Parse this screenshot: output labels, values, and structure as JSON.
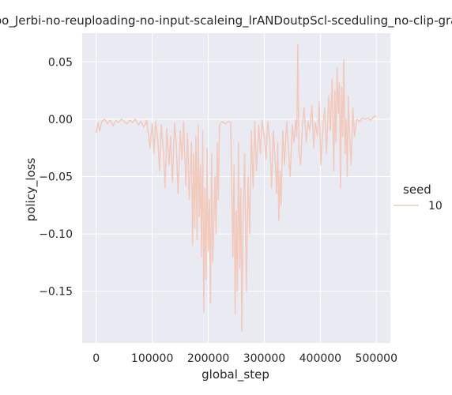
{
  "chart_data": {
    "type": "line",
    "title": "po_Jerbi-no-reuploading-no-input-scaleing_lrANDoutpScl-sceduling_no-clip-gra",
    "xlabel": "global_step",
    "ylabel": "policy_loss",
    "xlim": [
      -25000,
      525000
    ],
    "ylim": [
      -0.195,
      0.075
    ],
    "xticks": [
      0,
      100000,
      200000,
      300000,
      400000,
      500000
    ],
    "xtick_labels": [
      "0",
      "100000",
      "200000",
      "300000",
      "400000",
      "500000"
    ],
    "yticks": [
      -0.15,
      -0.1,
      -0.05,
      0.0,
      0.05
    ],
    "ytick_labels": [
      "−0.15",
      "−0.10",
      "−0.05",
      "0.00",
      "0.05"
    ],
    "grid": true,
    "background": "#eaeaf2",
    "legend": {
      "title": "seed",
      "position": "right",
      "entries": [
        "10"
      ]
    },
    "series": [
      {
        "name": "10",
        "color": "#f2c9bd",
        "x": [
          0,
          3000,
          6000,
          10000,
          15000,
          20000,
          25000,
          30000,
          35000,
          40000,
          45000,
          50000,
          55000,
          60000,
          65000,
          70000,
          75000,
          80000,
          85000,
          90000,
          93000,
          96000,
          100000,
          103000,
          106000,
          110000,
          113000,
          116000,
          120000,
          123000,
          126000,
          130000,
          133000,
          136000,
          140000,
          143000,
          146000,
          150000,
          153000,
          156000,
          160000,
          163000,
          166000,
          170000,
          172000,
          174000,
          176000,
          178000,
          180000,
          182000,
          184000,
          186000,
          188000,
          190000,
          192000,
          194000,
          196000,
          198000,
          200000,
          202000,
          204000,
          206000,
          208000,
          210000,
          212000,
          214000,
          216000,
          218000,
          220000,
          225000,
          230000,
          235000,
          240000,
          242000,
          244000,
          246000,
          248000,
          250000,
          252000,
          254000,
          256000,
          258000,
          260000,
          262000,
          265000,
          268000,
          271000,
          274000,
          277000,
          280000,
          283000,
          286000,
          290000,
          293000,
          296000,
          300000,
          303000,
          306000,
          310000,
          313000,
          316000,
          320000,
          322000,
          324000,
          326000,
          328000,
          330000,
          333000,
          336000,
          340000,
          343000,
          346000,
          350000,
          353000,
          356000,
          358000,
          360000,
          362000,
          365000,
          368000,
          371000,
          375000,
          378000,
          381000,
          385000,
          388000,
          391000,
          395000,
          398000,
          401000,
          405000,
          408000,
          411000,
          415000,
          418000,
          421000,
          424000,
          426000,
          428000,
          430000,
          432000,
          434000,
          436000,
          438000,
          440000,
          442000,
          444000,
          446000,
          448000,
          450000,
          452000,
          455000,
          458000,
          461000,
          465000,
          470000,
          475000,
          480000,
          485000,
          490000,
          495000,
          500000
        ],
        "y": [
          -0.012,
          -0.003,
          -0.01,
          -0.002,
          0.0,
          -0.004,
          -0.001,
          -0.006,
          -0.001,
          -0.003,
          0.0,
          -0.002,
          -0.004,
          -0.001,
          -0.003,
          0.0,
          -0.005,
          -0.002,
          -0.007,
          -0.001,
          -0.012,
          -0.025,
          -0.004,
          -0.03,
          -0.002,
          -0.018,
          -0.045,
          -0.005,
          -0.028,
          -0.06,
          -0.008,
          -0.04,
          -0.015,
          -0.055,
          -0.003,
          -0.022,
          -0.065,
          -0.01,
          -0.035,
          -0.002,
          -0.058,
          -0.012,
          -0.07,
          -0.02,
          -0.11,
          -0.03,
          -0.095,
          -0.015,
          -0.105,
          -0.005,
          -0.085,
          -0.04,
          -0.12,
          -0.01,
          -0.168,
          -0.06,
          -0.14,
          -0.025,
          -0.115,
          -0.07,
          -0.16,
          -0.03,
          -0.125,
          -0.09,
          -0.05,
          -0.1,
          -0.02,
          -0.07,
          -0.005,
          -0.002,
          -0.004,
          -0.002,
          -0.003,
          -0.06,
          -0.12,
          -0.04,
          -0.17,
          -0.08,
          -0.15,
          -0.02,
          -0.13,
          -0.06,
          -0.185,
          -0.09,
          -0.03,
          -0.15,
          -0.05,
          -0.1,
          -0.01,
          -0.06,
          -0.002,
          -0.045,
          -0.005,
          -0.03,
          -0.001,
          -0.015,
          -0.035,
          -0.002,
          -0.02,
          -0.06,
          -0.01,
          -0.04,
          -0.065,
          -0.02,
          -0.088,
          -0.045,
          -0.075,
          -0.01,
          -0.04,
          -0.002,
          -0.025,
          -0.05,
          -0.005,
          -0.02,
          -0.001,
          -0.015,
          0.065,
          -0.03,
          -0.04,
          -0.005,
          0.01,
          -0.02,
          -0.002,
          -0.01,
          0.012,
          -0.025,
          -0.003,
          -0.015,
          0.015,
          -0.04,
          -0.005,
          0.01,
          -0.03,
          0.02,
          -0.01,
          0.035,
          -0.045,
          0.025,
          -0.02,
          0.045,
          0.005,
          0.032,
          -0.06,
          0.028,
          -0.015,
          0.052,
          -0.03,
          0.0,
          -0.05,
          0.02,
          -0.012,
          -0.04,
          0.01,
          -0.015,
          0.0,
          -0.002,
          0.001,
          0.0,
          0.001,
          -0.001,
          0.002,
          0.003
        ]
      }
    ]
  }
}
